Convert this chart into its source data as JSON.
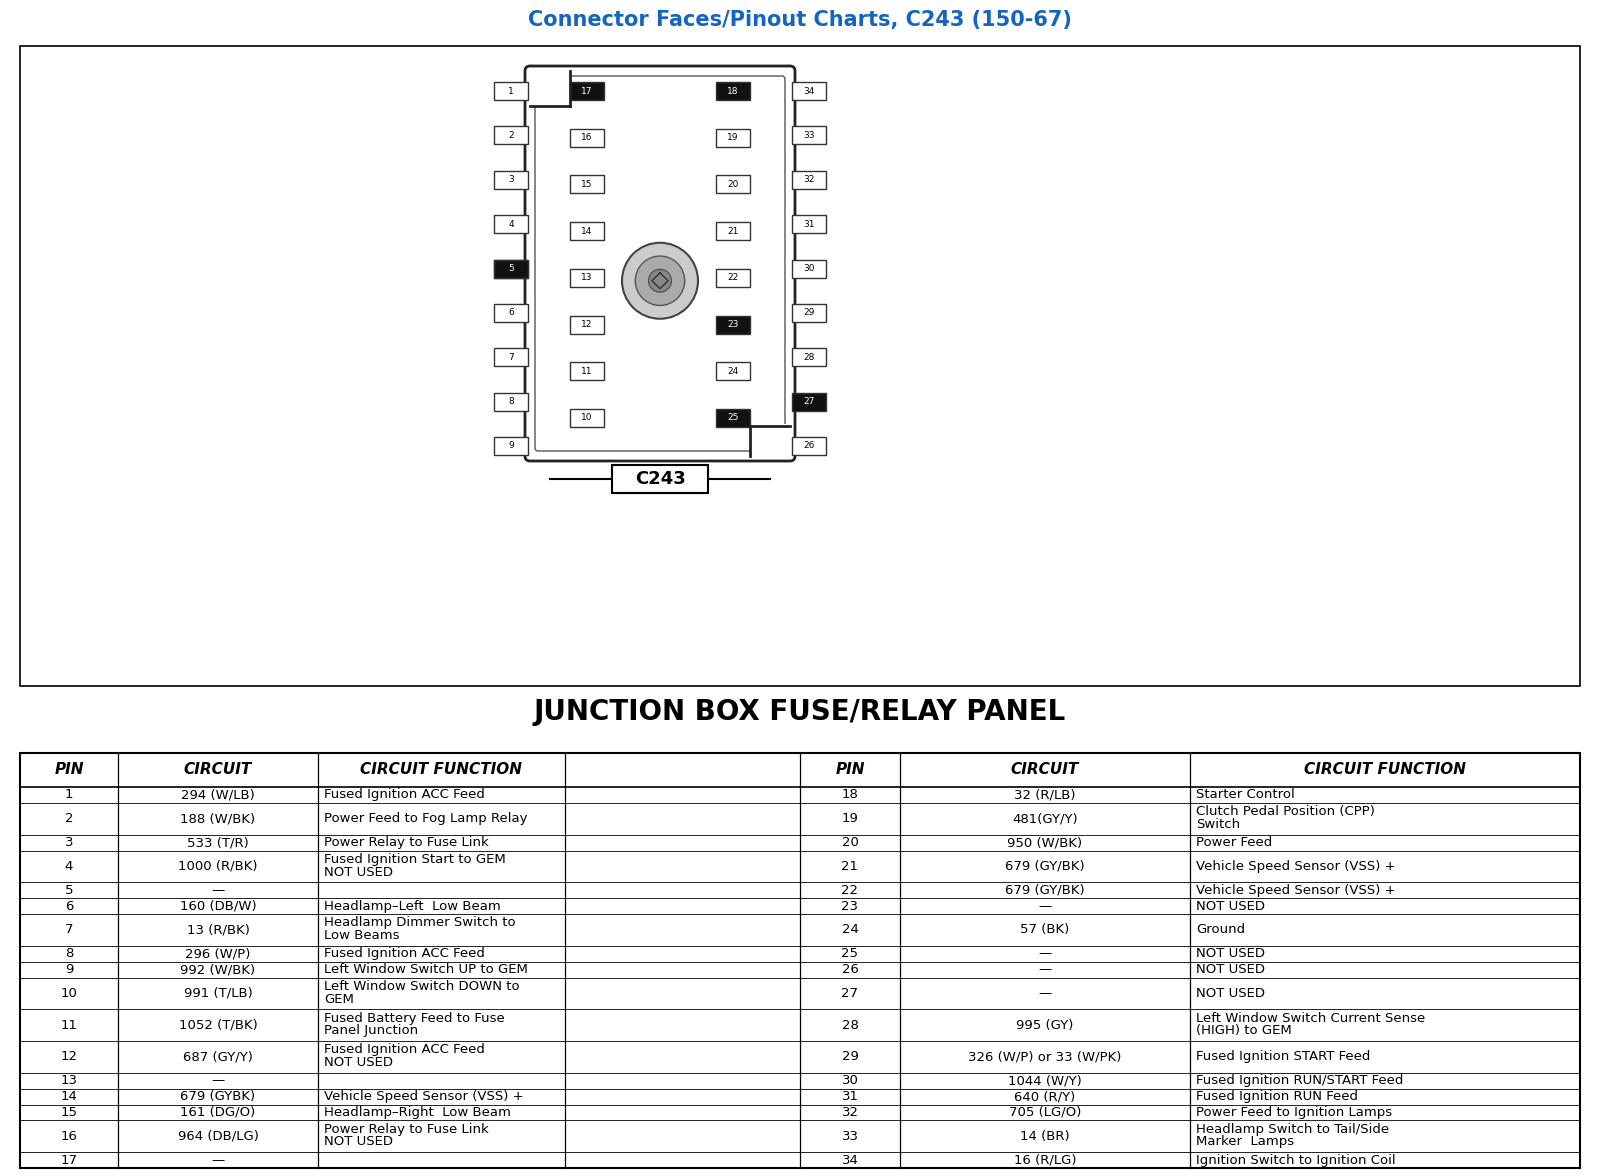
{
  "title": "Connector Faces/Pinout Charts, C243 (150-67)",
  "subtitle": "JUNCTION BOX FUSE/RELAY PANEL",
  "title_color": "#1565c0",
  "bg_color": "#ffffff",
  "table_headers": [
    "PIN",
    "CIRCUIT",
    "CIRCUIT FUNCTION",
    "PIN",
    "CIRCUIT",
    "CIRCUIT FUNCTION"
  ],
  "rows_left": [
    [
      "1",
      "294 (W/LB)",
      "Fused Ignition ACC Feed"
    ],
    [
      "2",
      "188 (W/BK)",
      "Power Feed to Fog Lamp Relay"
    ],
    [
      "3",
      "533 (T/R)",
      "Power Relay to Fuse Link"
    ],
    [
      "4",
      "1000 (R/BK)",
      "Fused Ignition Start to GEM\nNOT USED"
    ],
    [
      "5",
      "—",
      ""
    ],
    [
      "6",
      "160 (DB/W)",
      "Headlamp–Left  Low Beam"
    ],
    [
      "7",
      "13 (R/BK)",
      "Headlamp Dimmer Switch to\nLow Beams"
    ],
    [
      "8",
      "296 (W/P)",
      "Fused Ignition ACC Feed"
    ],
    [
      "9",
      "992 (W/BK)",
      "Left Window Switch UP to GEM"
    ],
    [
      "10",
      "991 (T/LB)",
      "Left Window Switch DOWN to\nGEM"
    ],
    [
      "11",
      "1052 (T/BK)",
      "Fused Battery Feed to Fuse\nPanel Junction"
    ],
    [
      "12",
      "687 (GY/Y)",
      "Fused Ignition ACC Feed\nNOT USED"
    ],
    [
      "13",
      "—",
      ""
    ],
    [
      "14",
      "679 (GYBK)",
      "Vehicle Speed Sensor (VSS) +"
    ],
    [
      "15",
      "161 (DG/O)",
      "Headlamp–Right  Low Beam"
    ],
    [
      "16",
      "964 (DB/LG)",
      "Power Relay to Fuse Link\nNOT USED"
    ],
    [
      "17",
      "—",
      ""
    ]
  ],
  "rows_right": [
    [
      "18",
      "32 (R/LB)",
      "Starter Control"
    ],
    [
      "19",
      "481(GY/Y)",
      "Clutch Pedal Position (CPP)\nSwitch"
    ],
    [
      "20",
      "950 (W/BK)",
      "Power Feed"
    ],
    [
      "21",
      "679 (GY/BK)",
      "Vehicle Speed Sensor (VSS) +"
    ],
    [
      "22",
      "679 (GY/BK)",
      "Vehicle Speed Sensor (VSS) +"
    ],
    [
      "23",
      "—",
      "NOT USED"
    ],
    [
      "24",
      "57 (BK)",
      "Ground"
    ],
    [
      "25",
      "—",
      "NOT USED"
    ],
    [
      "26",
      "—",
      "NOT USED"
    ],
    [
      "27",
      "—",
      "NOT USED"
    ],
    [
      "28",
      "995 (GY)",
      "Left Window Switch Current Sense\n(HIGH) to GEM"
    ],
    [
      "29",
      "326 (W/P) or 33 (W/PK)",
      "Fused Ignition START Feed"
    ],
    [
      "30",
      "1044 (W/Y)",
      "Fused Ignition RUN/START Feed"
    ],
    [
      "31",
      "640 (R/Y)",
      "Fused Ignition RUN Feed"
    ],
    [
      "32",
      "705 (LG/O)",
      "Power Feed to Ignition Lamps"
    ],
    [
      "33",
      "14 (BR)",
      "Headlamp Switch to Tail/Side\nMarker  Lamps"
    ],
    [
      "34",
      "16 (R/LG)",
      "Ignition Switch to Ignition Coil"
    ]
  ]
}
